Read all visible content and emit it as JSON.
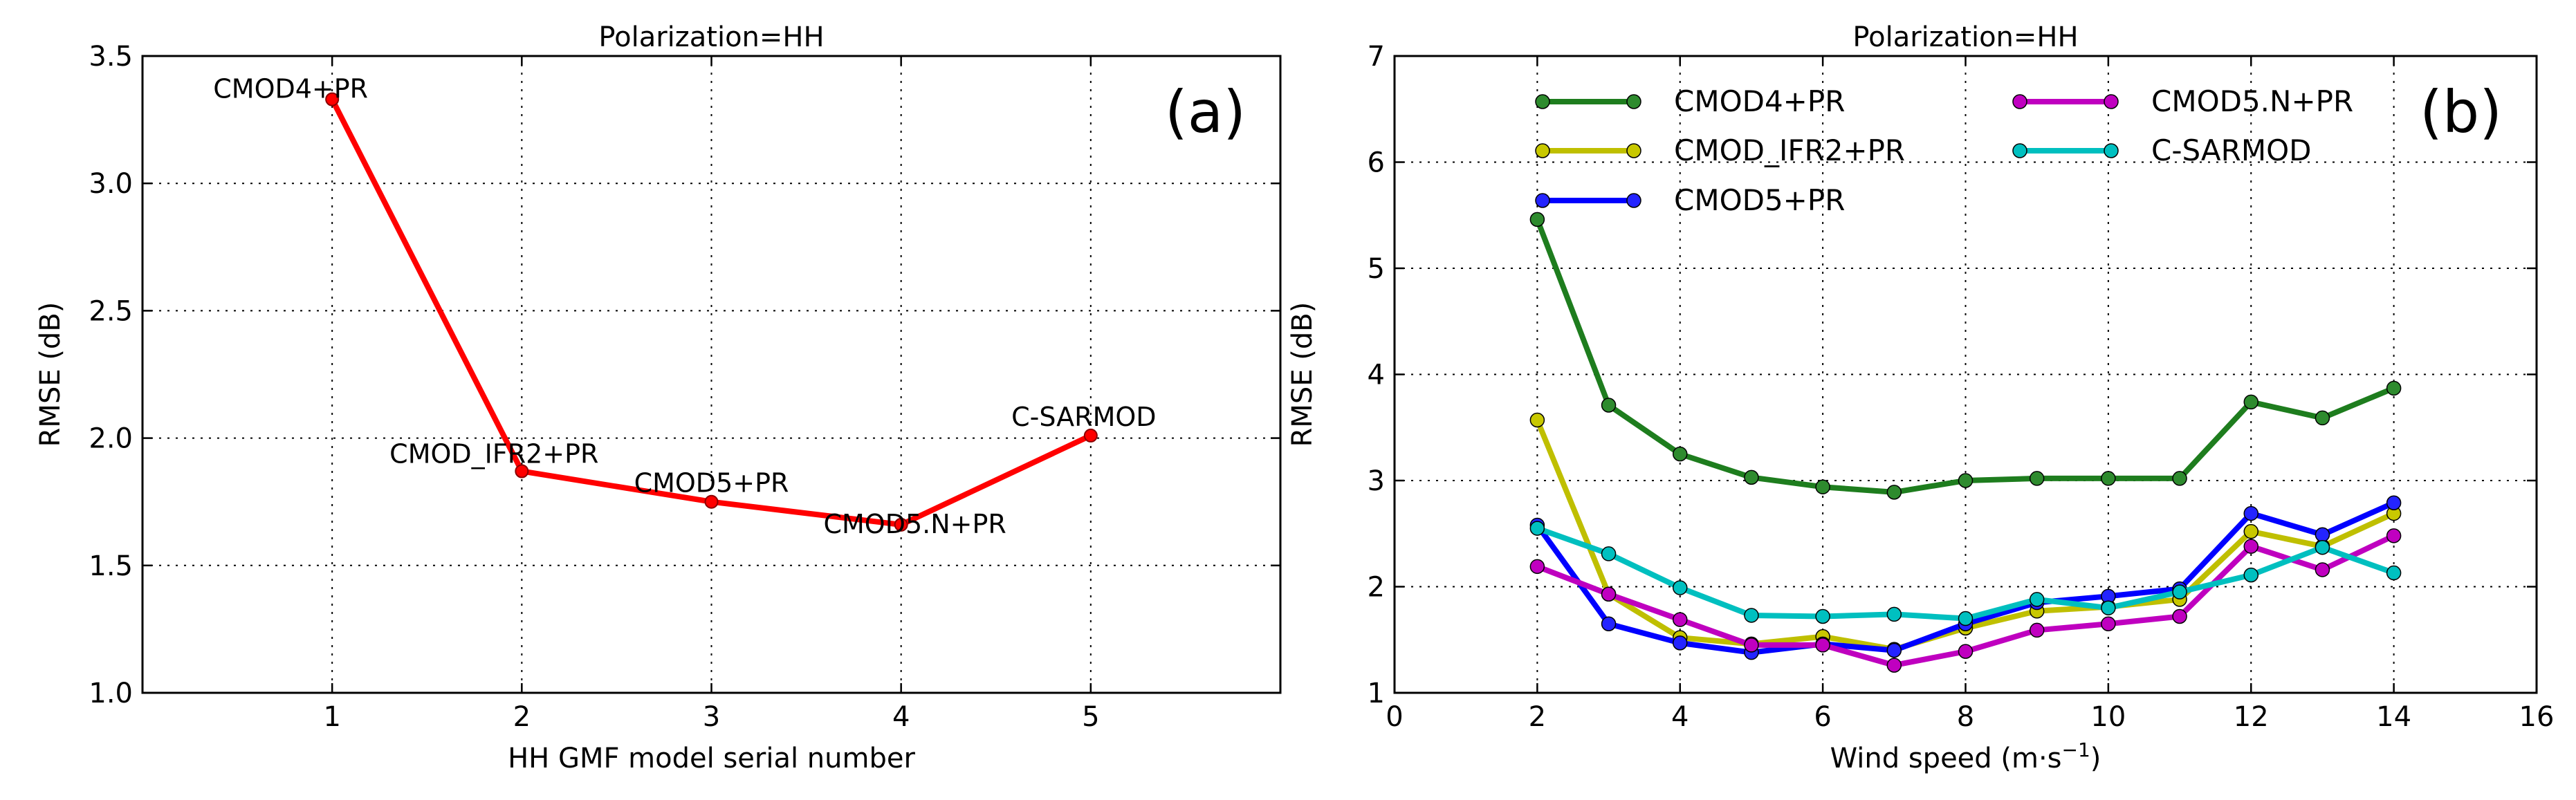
{
  "chart_data": [
    {
      "type": "line",
      "title": "Polarization=HH",
      "panel_label": "(a)",
      "xlabel": "HH GMF model serial number",
      "ylabel": "RMSE (dB)",
      "xlim": [
        0,
        6
      ],
      "ylim": [
        1.0,
        3.5
      ],
      "xticks": [
        "1",
        "2",
        "3",
        "4",
        "5"
      ],
      "yticks": [
        "1.0",
        "1.5",
        "2.0",
        "2.5",
        "3.0",
        "3.5"
      ],
      "grid": true,
      "color": "#ff0000",
      "x": [
        1,
        2,
        3,
        4,
        5
      ],
      "values": [
        3.33,
        1.87,
        1.75,
        1.66,
        2.01
      ],
      "point_labels": [
        "CMOD4+PR",
        "CMOD_IFR2+PR",
        "CMOD5+PR",
        "CMOD5.N+PR",
        "C-SARMOD"
      ]
    },
    {
      "type": "line",
      "title": "Polarization=HH",
      "panel_label": "(b)",
      "xlabel": "Wind speed (m·s",
      "xlabel_sup": "−1",
      "xlabel_end": ")",
      "ylabel": "RMSE (dB)",
      "xlim": [
        0,
        16
      ],
      "ylim": [
        1,
        7
      ],
      "xticks": [
        "0",
        "2",
        "4",
        "6",
        "8",
        "10",
        "12",
        "14",
        "16"
      ],
      "yticks": [
        "1",
        "2",
        "3",
        "4",
        "5",
        "6",
        "7"
      ],
      "grid": true,
      "legend": "top",
      "x": [
        2,
        3,
        4,
        5,
        6,
        7,
        8,
        9,
        10,
        11,
        12,
        13,
        14
      ],
      "series": [
        {
          "name": "CMOD4+PR",
          "color": "#1e7d1e",
          "values": [
            5.46,
            3.71,
            3.25,
            3.03,
            2.94,
            2.89,
            3.0,
            3.02,
            3.02,
            3.02,
            3.74,
            3.59,
            3.87
          ]
        },
        {
          "name": "CMOD_IFR2+PR",
          "color": "#bfbf00",
          "values": [
            3.57,
            1.93,
            1.52,
            1.46,
            1.53,
            1.41,
            1.61,
            1.77,
            1.81,
            1.88,
            2.52,
            2.38,
            2.69
          ]
        },
        {
          "name": "CMOD5+PR",
          "color": "#0000ff",
          "values": [
            2.58,
            1.65,
            1.47,
            1.38,
            1.46,
            1.4,
            1.65,
            1.85,
            1.91,
            1.98,
            2.69,
            2.49,
            2.79
          ]
        },
        {
          "name": "CMOD5.N+PR",
          "color": "#bf00bf",
          "values": [
            2.19,
            1.93,
            1.69,
            1.45,
            1.45,
            1.26,
            1.39,
            1.59,
            1.65,
            1.72,
            2.38,
            2.16,
            2.48
          ]
        },
        {
          "name": "C-SARMOD",
          "color": "#00bfbf",
          "values": [
            2.55,
            2.31,
            1.99,
            1.73,
            1.72,
            1.74,
            1.7,
            1.88,
            1.8,
            1.95,
            2.11,
            2.37,
            2.13
          ]
        }
      ]
    }
  ]
}
